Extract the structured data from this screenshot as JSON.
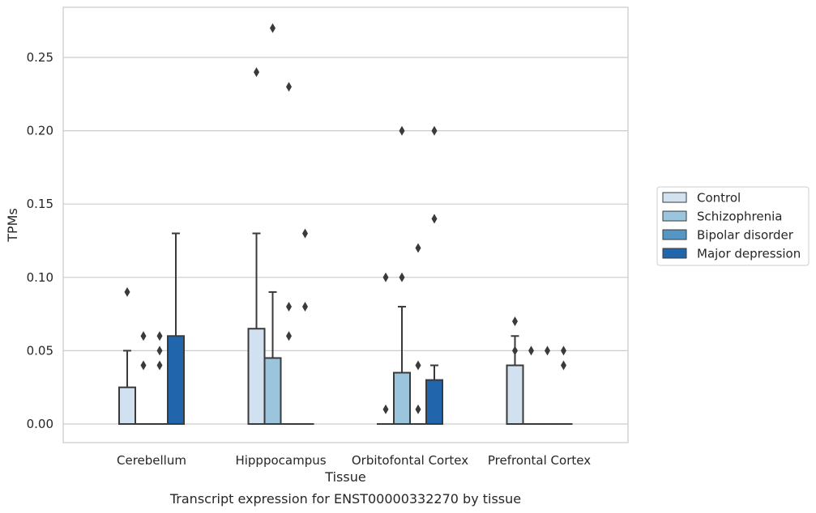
{
  "caption": "Transcript expression for ENST00000332270 by tissue",
  "chart_data": {
    "type": "box",
    "xlabel": "Tissue",
    "ylabel": "TPMs",
    "ylim": [
      -0.013,
      0.284
    ],
    "yticks": [
      0.0,
      0.05,
      0.1,
      0.15,
      0.2,
      0.25
    ],
    "ytick_labels": [
      "0.00",
      "0.05",
      "0.10",
      "0.15",
      "0.20",
      "0.25"
    ],
    "grid": "horizontal",
    "legend_position": "right",
    "categories": [
      "Cerebellum",
      "Hipppocampus",
      "Orbitofontal Cortex",
      "Prefrontal Cortex"
    ],
    "series": [
      {
        "name": "Control",
        "color": "#d1e1f0",
        "boxes": [
          {
            "q1": 0.0,
            "median": 0.0,
            "q3": 0.025,
            "whisker_low": 0.0,
            "whisker_high": 0.05,
            "outliers": [
              0.09
            ]
          },
          {
            "q1": 0.0,
            "median": 0.0,
            "q3": 0.065,
            "whisker_low": 0.0,
            "whisker_high": 0.13,
            "outliers": [
              0.24
            ]
          },
          {
            "q1": 0.0,
            "median": 0.0,
            "q3": 0.0,
            "whisker_low": 0.0,
            "whisker_high": 0.0,
            "outliers": [
              0.01,
              0.1
            ]
          },
          {
            "q1": 0.0,
            "median": 0.0,
            "q3": 0.04,
            "whisker_low": 0.0,
            "whisker_high": 0.06,
            "outliers": [
              0.07,
              0.05
            ]
          }
        ]
      },
      {
        "name": "Schizophrenia",
        "color": "#9bc5dc",
        "boxes": [
          {
            "q1": 0.0,
            "median": 0.0,
            "q3": 0.0,
            "whisker_low": 0.0,
            "whisker_high": 0.0,
            "outliers": [
              0.06,
              0.04
            ]
          },
          {
            "q1": 0.0,
            "median": 0.0,
            "q3": 0.045,
            "whisker_low": 0.0,
            "whisker_high": 0.09,
            "outliers": [
              0.27
            ]
          },
          {
            "q1": 0.0,
            "median": 0.0,
            "q3": 0.035,
            "whisker_low": 0.0,
            "whisker_high": 0.08,
            "outliers": [
              0.2,
              0.1
            ]
          },
          {
            "q1": 0.0,
            "median": 0.0,
            "q3": 0.0,
            "whisker_low": 0.0,
            "whisker_high": 0.0,
            "outliers": [
              0.05
            ]
          }
        ]
      },
      {
        "name": "Bipolar disorder",
        "color": "#5696c6",
        "boxes": [
          {
            "q1": 0.0,
            "median": 0.0,
            "q3": 0.0,
            "whisker_low": 0.0,
            "whisker_high": 0.0,
            "outliers": [
              0.06,
              0.05,
              0.04
            ]
          },
          {
            "q1": 0.0,
            "median": 0.0,
            "q3": 0.0,
            "whisker_low": 0.0,
            "whisker_high": 0.0,
            "outliers": [
              0.23,
              0.08,
              0.06
            ]
          },
          {
            "q1": 0.0,
            "median": 0.0,
            "q3": 0.0,
            "whisker_low": 0.0,
            "whisker_high": 0.0,
            "outliers": [
              0.12,
              0.04,
              0.01
            ]
          },
          {
            "q1": 0.0,
            "median": 0.0,
            "q3": 0.0,
            "whisker_low": 0.0,
            "whisker_high": 0.0,
            "outliers": [
              0.05
            ]
          }
        ]
      },
      {
        "name": "Major depression",
        "color": "#2166ac",
        "boxes": [
          {
            "q1": 0.0,
            "median": 0.0,
            "q3": 0.06,
            "whisker_low": 0.0,
            "whisker_high": 0.13,
            "outliers": []
          },
          {
            "q1": 0.0,
            "median": 0.0,
            "q3": 0.0,
            "whisker_low": 0.0,
            "whisker_high": 0.0,
            "outliers": [
              0.13,
              0.08
            ]
          },
          {
            "q1": 0.0,
            "median": 0.0,
            "q3": 0.03,
            "whisker_low": 0.0,
            "whisker_high": 0.04,
            "outliers": [
              0.2,
              0.14
            ]
          },
          {
            "q1": 0.0,
            "median": 0.0,
            "q3": 0.0,
            "whisker_low": 0.0,
            "whisker_high": 0.0,
            "outliers": [
              0.05,
              0.04
            ]
          }
        ]
      }
    ]
  }
}
